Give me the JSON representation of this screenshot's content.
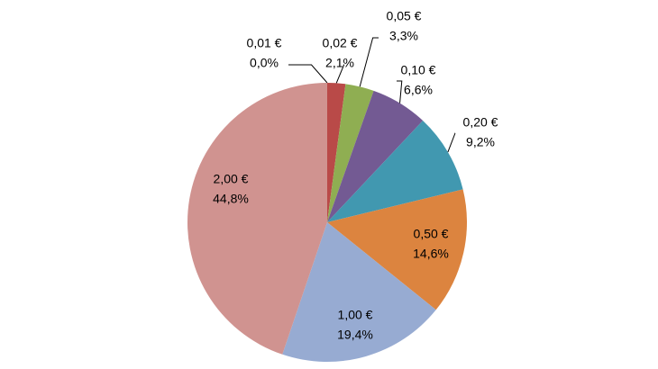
{
  "chart_data": {
    "type": "pie",
    "categories": [
      "0,01 €",
      "0,02 €",
      "0,05 €",
      "0,10 €",
      "0,20 €",
      "0,50 €",
      "1,00 €",
      "2,00 €"
    ],
    "values": [
      0.0,
      2.1,
      3.3,
      6.6,
      9.2,
      14.6,
      19.4,
      44.8
    ],
    "value_labels": [
      "0,0%",
      "2,1%",
      "3,3%",
      "6,6%",
      "9,2%",
      "14,6%",
      "19,4%",
      "44,8%"
    ],
    "colors": [
      "#4a7ebb",
      "#b94a48",
      "#8fae52",
      "#735a93",
      "#4198b0",
      "#dc843f",
      "#97abd2",
      "#d09390"
    ]
  }
}
